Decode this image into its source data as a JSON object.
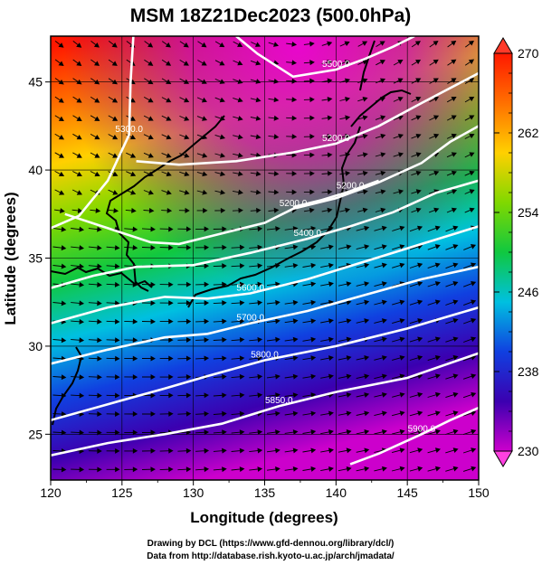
{
  "chart_data": {
    "type": "heatmap",
    "title": "MSM 18Z21Dec2023 (500.0hPa)",
    "xlabel": "Longitude (degrees)",
    "ylabel": "Latitude  (degrees)",
    "xlim": [
      120,
      150
    ],
    "ylim": [
      22.4,
      47.6
    ],
    "xticks": [
      "120",
      "125",
      "130",
      "135",
      "140",
      "145",
      "150"
    ],
    "yticks": [
      "25",
      "30",
      "35",
      "40",
      "45"
    ],
    "colorbar": {
      "range": [
        230,
        270
      ],
      "ticks": [
        "270",
        "262",
        "254",
        "246",
        "238",
        "230"
      ],
      "colors": [
        "#cc00cc",
        "#3b00b0",
        "#1040e0",
        "#00c0e0",
        "#10c840",
        "#80d800",
        "#ffd000",
        "#ff7000",
        "#ff1800"
      ]
    },
    "contours": [
      {
        "label": "5200.0",
        "points": [
          [
            121,
            37.5
          ],
          [
            124,
            36.7
          ],
          [
            127,
            35.9
          ],
          [
            129,
            35.8
          ],
          [
            132,
            36.4
          ],
          [
            135,
            37.0
          ],
          [
            137,
            37.8
          ],
          [
            140,
            38.4
          ],
          [
            143,
            39.3
          ],
          [
            146,
            40.4
          ],
          [
            148,
            41.6
          ],
          [
            150,
            42.5
          ]
        ]
      },
      {
        "label": "5200.0",
        "points": [
          [
            137,
            37.9
          ],
          [
            139,
            38.3
          ],
          [
            141,
            38.8
          ],
          [
            143,
            39.4
          ]
        ]
      },
      {
        "label": "5300.0",
        "points": [
          [
            120,
            36.7
          ],
          [
            122,
            37.4
          ],
          [
            124,
            39.4
          ],
          [
            125.5,
            42.0
          ],
          [
            125.6,
            45.0
          ],
          [
            125.8,
            47.6
          ]
        ]
      },
      {
        "label": "5200.0",
        "points": [
          [
            126,
            40.5
          ],
          [
            129,
            40.3
          ],
          [
            133,
            40.5
          ],
          [
            137,
            41.0
          ],
          [
            140,
            41.5
          ],
          [
            143,
            42.5
          ],
          [
            146,
            43.8
          ],
          [
            150,
            45.5
          ]
        ]
      },
      {
        "label": "5500.0",
        "points": [
          [
            133,
            47.6
          ],
          [
            134.5,
            46.6
          ],
          [
            137,
            45.3
          ],
          [
            140,
            45.7
          ],
          [
            142,
            46.3
          ],
          [
            144,
            47.0
          ],
          [
            145.5,
            47.6
          ]
        ]
      },
      {
        "label": "5400.0",
        "points": [
          [
            120,
            33.3
          ],
          [
            123,
            34.0
          ],
          [
            126,
            34.5
          ],
          [
            130,
            34.6
          ],
          [
            134,
            35.3
          ],
          [
            138,
            36.1
          ],
          [
            141,
            36.8
          ],
          [
            144,
            37.6
          ],
          [
            147,
            38.7
          ],
          [
            150,
            39.4
          ]
        ]
      },
      {
        "label": "5600.0",
        "points": [
          [
            120,
            31.3
          ],
          [
            124,
            32.2
          ],
          [
            128,
            32.8
          ],
          [
            131,
            32.7
          ],
          [
            134,
            33.0
          ],
          [
            138,
            33.8
          ],
          [
            142,
            34.8
          ],
          [
            146,
            35.8
          ],
          [
            150,
            36.8
          ]
        ]
      },
      {
        "label": "5700.0",
        "points": [
          [
            120,
            29.0
          ],
          [
            124,
            29.8
          ],
          [
            128,
            30.5
          ],
          [
            131,
            30.7
          ],
          [
            134,
            31.3
          ],
          [
            138,
            32.0
          ],
          [
            142,
            32.9
          ],
          [
            146,
            33.8
          ],
          [
            150,
            34.5
          ]
        ]
      },
      {
        "label": "5800.0",
        "points": [
          [
            120,
            25.8
          ],
          [
            124,
            26.7
          ],
          [
            128,
            27.6
          ],
          [
            131,
            28.3
          ],
          [
            135,
            29.2
          ],
          [
            140,
            30.0
          ],
          [
            145,
            31.0
          ],
          [
            150,
            32.2
          ]
        ]
      },
      {
        "label": "5850.0",
        "points": [
          [
            120,
            23.8
          ],
          [
            124,
            24.5
          ],
          [
            128,
            25.0
          ],
          [
            132,
            25.6
          ],
          [
            136,
            26.6
          ],
          [
            140,
            27.4
          ],
          [
            145,
            28.2
          ],
          [
            150,
            29.6
          ]
        ]
      },
      {
        "label": "5900.0",
        "points": [
          [
            141,
            23.3
          ],
          [
            143,
            23.9
          ],
          [
            146,
            25.0
          ],
          [
            148,
            25.8
          ],
          [
            150,
            26.5
          ]
        ]
      }
    ]
  },
  "credits": {
    "line1": "Drawing by DCL (https://www.gfd-dennou.org/library/dcl/)",
    "line2": "Data from http://database.rish.kyoto-u.ac.jp/arch/jmadata/"
  }
}
